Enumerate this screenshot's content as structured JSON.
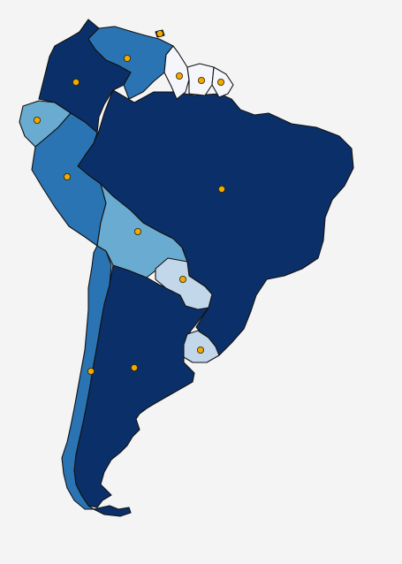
{
  "map": {
    "region": "south-america",
    "legend": null,
    "palette": {
      "background": "#f4f4f5",
      "border": "#111111",
      "capital_marker": "#f2a900",
      "tiers": {
        "darkest": "#0b3069",
        "dark": "#2a74b4",
        "medium": "#6aabd2",
        "light": "#c3d7ea",
        "lightest": "#f4f6fb"
      }
    },
    "countries": [
      {
        "id": "brazil",
        "tier": "darkest",
        "has_capital_marker": true
      },
      {
        "id": "argentina",
        "tier": "darkest",
        "has_capital_marker": true
      },
      {
        "id": "colombia",
        "tier": "darkest",
        "has_capital_marker": true
      },
      {
        "id": "peru",
        "tier": "dark",
        "has_capital_marker": true
      },
      {
        "id": "chile",
        "tier": "dark",
        "has_capital_marker": true
      },
      {
        "id": "venezuela",
        "tier": "dark",
        "has_capital_marker": true
      },
      {
        "id": "bolivia",
        "tier": "medium",
        "has_capital_marker": true
      },
      {
        "id": "ecuador",
        "tier": "medium",
        "has_capital_marker": true
      },
      {
        "id": "paraguay",
        "tier": "light",
        "has_capital_marker": true
      },
      {
        "id": "uruguay",
        "tier": "light",
        "has_capital_marker": true
      },
      {
        "id": "guyana",
        "tier": "lightest",
        "has_capital_marker": true
      },
      {
        "id": "suriname",
        "tier": "lightest",
        "has_capital_marker": true
      },
      {
        "id": "french-guiana",
        "tier": "lightest",
        "has_capital_marker": true
      },
      {
        "id": "trinidad",
        "tier": "dark",
        "has_capital_marker": true
      }
    ]
  }
}
